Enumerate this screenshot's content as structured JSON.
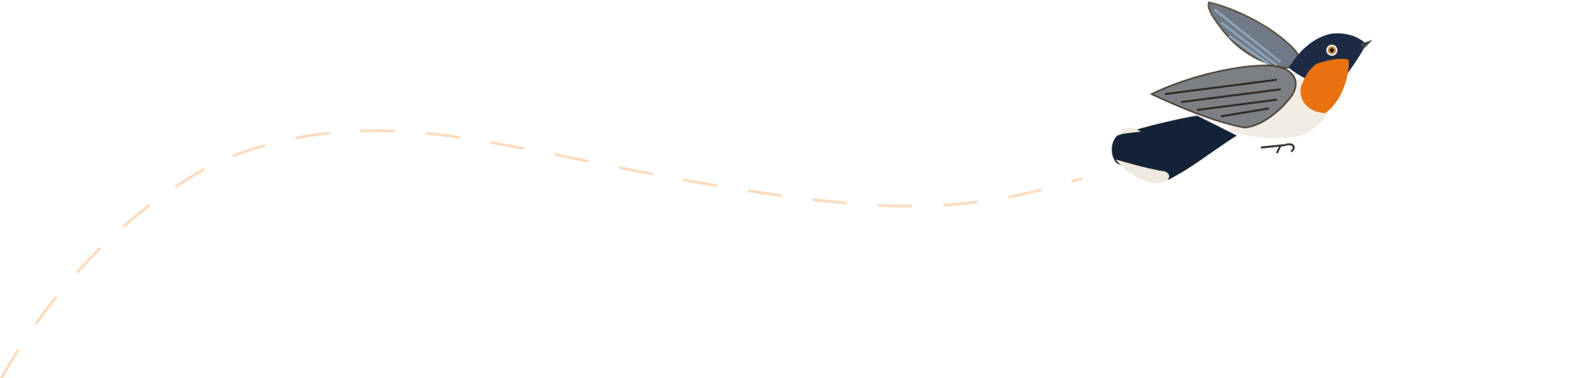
{
  "illustration": {
    "subject": "bird-in-flight",
    "flight_path_style": "dashed",
    "colors": {
      "path": "#fbdcbf",
      "throat": "#e8720f",
      "head": "#1d2a44",
      "wing": "#7c7f84",
      "belly": "#f1ede4"
    }
  }
}
